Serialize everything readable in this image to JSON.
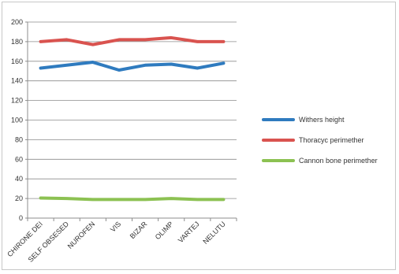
{
  "chart_data": {
    "type": "line",
    "categories": [
      "CHIRONE DEI",
      "SELF OBSESED",
      "NUROFEN",
      "VIS",
      "BIZAR",
      "OLIMP",
      "VARTEJ",
      "NELUTU"
    ],
    "series": [
      {
        "name": "Withers height",
        "color": "#2f7bbf",
        "values": [
          153,
          156,
          159,
          151,
          156,
          157,
          153,
          158
        ]
      },
      {
        "name": "Thoracyc perimether",
        "color": "#d9534f",
        "values": [
          180,
          182,
          177,
          182,
          182,
          184,
          180,
          180
        ]
      },
      {
        "name": "Cannon bone perimether",
        "color": "#8cc152",
        "values": [
          20.5,
          20,
          19,
          19,
          19,
          20,
          19,
          19
        ]
      }
    ],
    "ylim": [
      0,
      200
    ],
    "yticks": [
      "0",
      "20",
      "40",
      "60",
      "80",
      "100",
      "120",
      "140",
      "160",
      "180",
      "200"
    ],
    "grid": true,
    "legend": "right"
  }
}
